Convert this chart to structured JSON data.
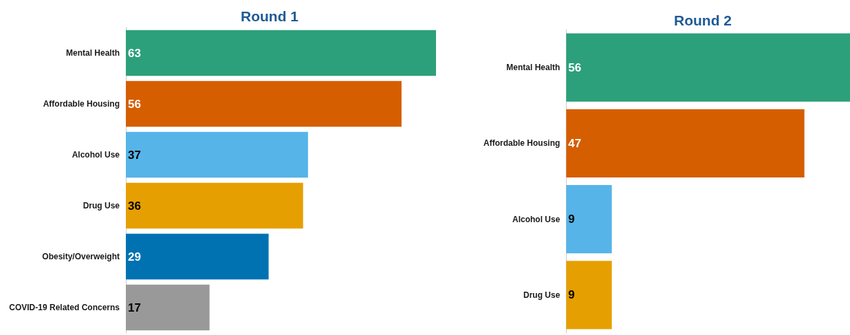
{
  "chart_data": [
    {
      "type": "bar",
      "orientation": "horizontal",
      "title": "Round 1",
      "categories": [
        "Mental Health",
        "Affordable Housing",
        "Alcohol Use",
        "Drug Use",
        "Obesity/Overweight",
        "COVID-19 Related Concerns"
      ],
      "values": [
        63,
        56,
        37,
        36,
        29,
        17
      ],
      "colors": [
        "#2ca07a",
        "#d55e00",
        "#56b4e9",
        "#e69f00",
        "#0072b2",
        "#999999"
      ],
      "data_labels": true,
      "tick_labels": "y"
    },
    {
      "type": "bar",
      "orientation": "horizontal",
      "title": "Round 2",
      "categories": [
        "Mental Health",
        "Affordable Housing",
        "Alcohol Use",
        "Drug Use"
      ],
      "values": [
        56,
        47,
        9,
        9
      ],
      "colors": [
        "#2ca07a",
        "#d55e00",
        "#56b4e9",
        "#e69f00"
      ],
      "data_labels": true,
      "tick_labels": "y"
    }
  ]
}
